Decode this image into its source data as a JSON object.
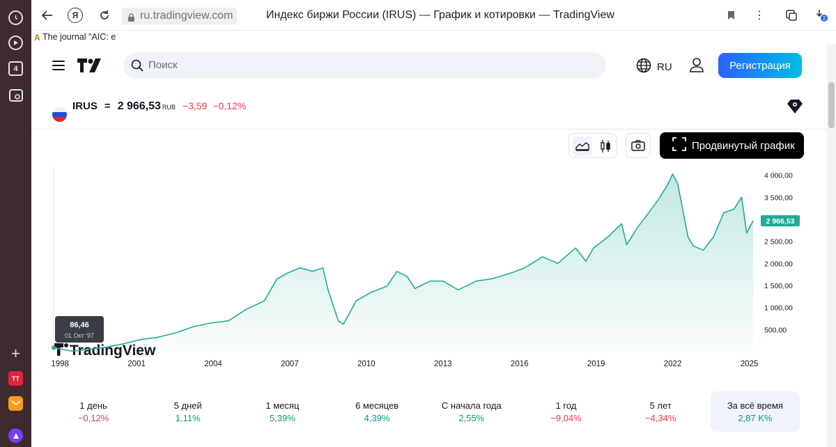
{
  "browser": {
    "url": "ru.tradingview.com",
    "tab_title": "Индекс биржи России (IRUS) — График и котировки — TradingView",
    "bookmark": "The journal \"AIC: e",
    "sidebar_badge": "4",
    "sidebar_app": "TT",
    "download_badge": "2"
  },
  "header": {
    "search_placeholder": "Поиск",
    "lang": "RU",
    "register_label": "Регистрация"
  },
  "ticker": {
    "symbol": "IRUS",
    "eq": "=",
    "price": "2 966,53",
    "currency": "RUB",
    "change_abs": "−3,59",
    "change_pct": "−0,12%"
  },
  "toolbar": {
    "advanced_chart_label": "Продвинутый график"
  },
  "chart_data": {
    "type": "area",
    "title": "",
    "xlabel": "",
    "ylabel": "",
    "x_ticks": [
      "1998",
      "2001",
      "2004",
      "2007",
      "2010",
      "2013",
      "2016",
      "2019",
      "2022",
      "2025"
    ],
    "y_ticks": [
      "500,00",
      "1 000,00",
      "1 500,00",
      "2 000,00",
      "2 500,00",
      "3 000,00",
      "3 500,00",
      "4 000,00"
    ],
    "ylim": [
      0,
      4200
    ],
    "xlim": [
      1997.75,
      2025.15
    ],
    "series": [
      {
        "x": [
          1997.75,
          1998.5,
          1999.2,
          1999.8,
          2000.5,
          2001.2,
          2001.8,
          2002.5,
          2003.2,
          2003.8,
          2004.6,
          2005.3,
          2006.0,
          2006.5,
          2006.9,
          2007.4,
          2007.9,
          2008.3,
          2008.5,
          2008.9,
          2009.1,
          2009.6,
          2010.2,
          2010.8,
          2011.2,
          2011.6,
          2011.9,
          2012.5,
          2013.0,
          2013.6,
          2014.3,
          2014.9,
          2015.6,
          2016.2,
          2016.9,
          2017.5,
          2018.2,
          2018.6,
          2018.9,
          2019.5,
          2020.0,
          2020.2,
          2020.6,
          2021.0,
          2021.5,
          2021.8,
          2022.0,
          2022.2,
          2022.6,
          2022.8,
          2023.2,
          2023.6,
          2024.0,
          2024.4,
          2024.7,
          2024.9,
          2025.15
        ],
        "values": [
          86.46,
          10,
          60,
          100,
          180,
          280,
          320,
          420,
          560,
          640,
          700,
          960,
          1150,
          1650,
          1780,
          1900,
          1820,
          1900,
          1400,
          700,
          620,
          1150,
          1350,
          1480,
          1820,
          1700,
          1430,
          1600,
          1600,
          1400,
          1600,
          1650,
          1770,
          1900,
          2150,
          2000,
          2350,
          2050,
          2350,
          2620,
          2900,
          2420,
          2800,
          3100,
          3500,
          3780,
          4030,
          3800,
          2600,
          2400,
          2300,
          2600,
          3150,
          3230,
          3500,
          2690,
          2966.53
        ]
      }
    ],
    "last_value_label": "2 966,53",
    "tooltip_value": "86,46",
    "tooltip_date": "01 Окт '97",
    "line_color": "#22ab94",
    "watermark": "TradingView"
  },
  "periods": [
    {
      "label": "1 день",
      "value": "−0,12%",
      "dir": "neg"
    },
    {
      "label": "5 дней",
      "value": "1,11%",
      "dir": "pos"
    },
    {
      "label": "1 месяц",
      "value": "5,39%",
      "dir": "pos"
    },
    {
      "label": "6 месяцев",
      "value": "4,39%",
      "dir": "pos"
    },
    {
      "label": "С начала года",
      "value": "2,55%",
      "dir": "pos"
    },
    {
      "label": "1 год",
      "value": "−9,04%",
      "dir": "neg"
    },
    {
      "label": "5 лет",
      "value": "−4,34%",
      "dir": "neg"
    },
    {
      "label": "За всё время",
      "value": "2,87 K%",
      "dir": "pos",
      "active": true
    }
  ]
}
